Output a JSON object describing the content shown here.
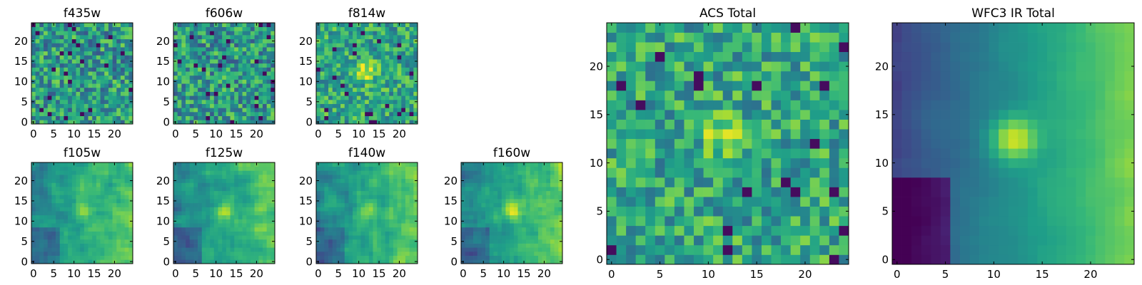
{
  "chart_data": [
    {
      "type": "heatmap",
      "title": "f435w",
      "grid_size": 25,
      "pattern": "noise",
      "seed": 11,
      "xticks": [
        0,
        5,
        10,
        15,
        20
      ],
      "yticks": [
        0,
        5,
        10,
        15,
        20
      ],
      "xlim": [
        0,
        25
      ],
      "ylim": [
        0,
        25
      ],
      "colormap": "viridis"
    },
    {
      "type": "heatmap",
      "title": "f606w",
      "grid_size": 25,
      "pattern": "noise",
      "seed": 23,
      "xticks": [
        0,
        5,
        10,
        15,
        20
      ],
      "yticks": [
        0,
        5,
        10,
        15,
        20
      ],
      "xlim": [
        0,
        25
      ],
      "ylim": [
        0,
        25
      ],
      "colormap": "viridis"
    },
    {
      "type": "heatmap",
      "title": "f814w",
      "grid_size": 25,
      "pattern": "noise_center",
      "seed": 37,
      "xticks": [
        0,
        5,
        10,
        15,
        20
      ],
      "yticks": [
        0,
        5,
        10,
        15,
        20
      ],
      "xlim": [
        0,
        25
      ],
      "ylim": [
        0,
        25
      ],
      "colormap": "viridis"
    },
    {
      "type": "heatmap",
      "title": "f105w",
      "grid_size": 25,
      "pattern": "smooth",
      "seed": 41,
      "xticks": [
        0,
        5,
        10,
        15,
        20
      ],
      "yticks": [
        0,
        5,
        10,
        15,
        20
      ],
      "xlim": [
        0,
        25
      ],
      "ylim": [
        0,
        25
      ],
      "colormap": "viridis"
    },
    {
      "type": "heatmap",
      "title": "f125w",
      "grid_size": 25,
      "pattern": "smooth",
      "seed": 53,
      "xticks": [
        0,
        5,
        10,
        15,
        20
      ],
      "yticks": [
        0,
        5,
        10,
        15,
        20
      ],
      "xlim": [
        0,
        25
      ],
      "ylim": [
        0,
        25
      ],
      "colormap": "viridis"
    },
    {
      "type": "heatmap",
      "title": "f140w",
      "grid_size": 25,
      "pattern": "smooth",
      "seed": 67,
      "xticks": [
        0,
        5,
        10,
        15,
        20
      ],
      "yticks": [
        0,
        5,
        10,
        15,
        20
      ],
      "xlim": [
        0,
        25
      ],
      "ylim": [
        0,
        25
      ],
      "colormap": "viridis"
    },
    {
      "type": "heatmap",
      "title": "f160w",
      "grid_size": 25,
      "pattern": "smooth",
      "seed": 79,
      "xticks": [
        0,
        5,
        10,
        15,
        20
      ],
      "yticks": [
        0,
        5,
        10,
        15,
        20
      ],
      "xlim": [
        0,
        25
      ],
      "ylim": [
        0,
        25
      ],
      "colormap": "viridis"
    },
    {
      "type": "heatmap",
      "title": "ACS Total",
      "grid_size": 25,
      "pattern": "noise_center",
      "seed": 97,
      "xticks": [
        0,
        5,
        10,
        15,
        20
      ],
      "yticks": [
        0,
        5,
        10,
        15,
        20
      ],
      "xlim": [
        0,
        25
      ],
      "ylim": [
        0,
        25
      ],
      "colormap": "viridis"
    },
    {
      "type": "heatmap",
      "title": "WFC3 IR Total",
      "grid_size": 25,
      "pattern": "gradient",
      "seed": 101,
      "xticks": [
        0,
        5,
        10,
        15,
        20
      ],
      "yticks": [
        0,
        5,
        10,
        15,
        20
      ],
      "xlim": [
        0,
        25
      ],
      "ylim": [
        0,
        25
      ],
      "colormap": "viridis"
    }
  ]
}
